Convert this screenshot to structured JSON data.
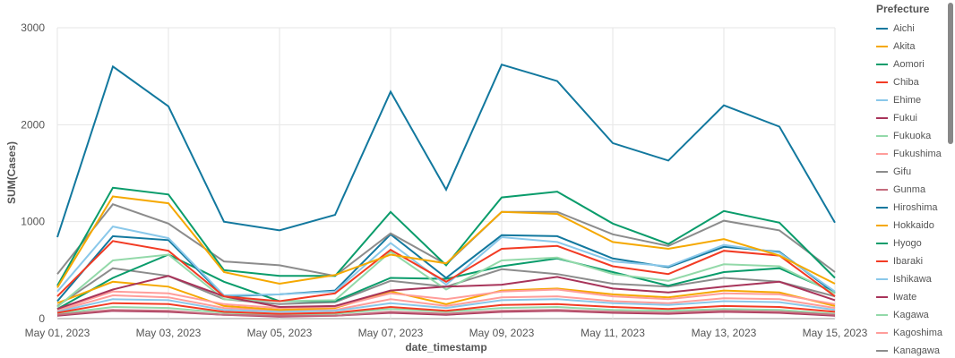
{
  "chart_data": {
    "type": "line",
    "xlabel": "date_timestamp",
    "ylabel": "SUM(Cases)",
    "ylim": [
      0,
      3000
    ],
    "yticks": [
      "0",
      "1000",
      "2000",
      "3000"
    ],
    "xticks": [
      "May 01, 2023",
      "May 03, 2023",
      "May 05, 2023",
      "May 07, 2023",
      "May 09, 2023",
      "May 11, 2023",
      "May 13, 2023",
      "May 15, 2023"
    ],
    "x": [
      "2023-05-01",
      "2023-05-02",
      "2023-05-03",
      "2023-05-04",
      "2023-05-05",
      "2023-05-06",
      "2023-05-07",
      "2023-05-08",
      "2023-05-09",
      "2023-05-10",
      "2023-05-11",
      "2023-05-12",
      "2023-05-13",
      "2023-05-14",
      "2023-05-15"
    ],
    "grid": true,
    "legend_title": "Prefecture",
    "legend_placement": "right",
    "series": [
      {
        "name": "Aichi",
        "color": "#12789e",
        "values": [
          840,
          2600,
          2190,
          1000,
          910,
          1070,
          2340,
          1330,
          2620,
          2450,
          1810,
          1630,
          2200,
          1980,
          990
        ]
      },
      {
        "name": "Akita",
        "color": "#f5a800",
        "values": [
          320,
          1260,
          1190,
          480,
          360,
          450,
          660,
          570,
          1100,
          1080,
          790,
          720,
          820,
          650,
          360
        ]
      },
      {
        "name": "Aomori",
        "color": "#0a9c6b",
        "values": [
          340,
          1350,
          1280,
          500,
          440,
          440,
          1100,
          550,
          1250,
          1310,
          980,
          770,
          1110,
          990,
          420
        ]
      },
      {
        "name": "Chiba",
        "color": "#f23b24",
        "values": [
          230,
          800,
          700,
          230,
          180,
          260,
          710,
          380,
          720,
          750,
          540,
          460,
          700,
          650,
          230
        ]
      },
      {
        "name": "Ehime",
        "color": "#8ac8ea",
        "values": [
          280,
          950,
          830,
          240,
          250,
          280,
          780,
          350,
          840,
          790,
          590,
          540,
          760,
          680,
          280
        ]
      },
      {
        "name": "Fukui",
        "color": "#a8345a",
        "values": [
          100,
          300,
          440,
          230,
          120,
          130,
          290,
          330,
          350,
          430,
          310,
          270,
          330,
          380,
          190
        ]
      },
      {
        "name": "Fukuoka",
        "color": "#93d9a9",
        "values": [
          120,
          600,
          660,
          200,
          180,
          190,
          690,
          300,
          600,
          630,
          460,
          390,
          560,
          540,
          260
        ]
      },
      {
        "name": "Fukushima",
        "color": "#ff9d9a",
        "values": [
          90,
          280,
          260,
          150,
          110,
          120,
          260,
          200,
          280,
          300,
          230,
          200,
          260,
          250,
          150
        ]
      },
      {
        "name": "Gifu",
        "color": "#8c8c8c",
        "values": [
          460,
          1180,
          980,
          590,
          550,
          440,
          880,
          560,
          1100,
          1100,
          870,
          750,
          1010,
          910,
          480
        ]
      },
      {
        "name": "Gunma",
        "color": "#c46b7d",
        "values": [
          40,
          90,
          80,
          40,
          30,
          30,
          70,
          50,
          80,
          90,
          70,
          60,
          80,
          70,
          40
        ]
      },
      {
        "name": "Hiroshima",
        "color": "#12789e",
        "values": [
          180,
          850,
          810,
          230,
          250,
          290,
          870,
          420,
          860,
          850,
          620,
          530,
          740,
          690,
          260
        ]
      },
      {
        "name": "Hokkaido",
        "color": "#f5a800",
        "values": [
          160,
          380,
          330,
          130,
          90,
          110,
          280,
          150,
          290,
          310,
          250,
          220,
          290,
          270,
          130
        ]
      },
      {
        "name": "Hyogo",
        "color": "#0a9c6b",
        "values": [
          100,
          420,
          660,
          380,
          180,
          180,
          420,
          410,
          540,
          620,
          480,
          340,
          480,
          520,
          270
        ]
      },
      {
        "name": "Ibaraki",
        "color": "#f23b24",
        "values": [
          60,
          160,
          150,
          70,
          50,
          60,
          120,
          80,
          140,
          150,
          120,
          100,
          130,
          120,
          70
        ]
      },
      {
        "name": "Ishikawa",
        "color": "#8ac8ea",
        "values": [
          70,
          200,
          190,
          90,
          70,
          80,
          160,
          110,
          190,
          200,
          160,
          140,
          180,
          170,
          90
        ]
      },
      {
        "name": "Iwate",
        "color": "#a8345a",
        "values": [
          30,
          80,
          70,
          40,
          20,
          30,
          60,
          40,
          70,
          80,
          60,
          50,
          70,
          60,
          30
        ]
      },
      {
        "name": "Kagawa",
        "color": "#93d9a9",
        "values": [
          50,
          120,
          110,
          60,
          40,
          50,
          100,
          70,
          110,
          120,
          90,
          80,
          100,
          90,
          50
        ]
      },
      {
        "name": "Kagoshima",
        "color": "#ff9d9a",
        "values": [
          80,
          240,
          220,
          110,
          80,
          90,
          200,
          130,
          220,
          230,
          180,
          160,
          210,
          200,
          110
        ]
      },
      {
        "name": "Kanagawa",
        "color": "#8c8c8c",
        "values": [
          130,
          520,
          440,
          200,
          150,
          170,
          390,
          330,
          510,
          460,
          360,
          330,
          420,
          380,
          230
        ]
      }
    ]
  }
}
